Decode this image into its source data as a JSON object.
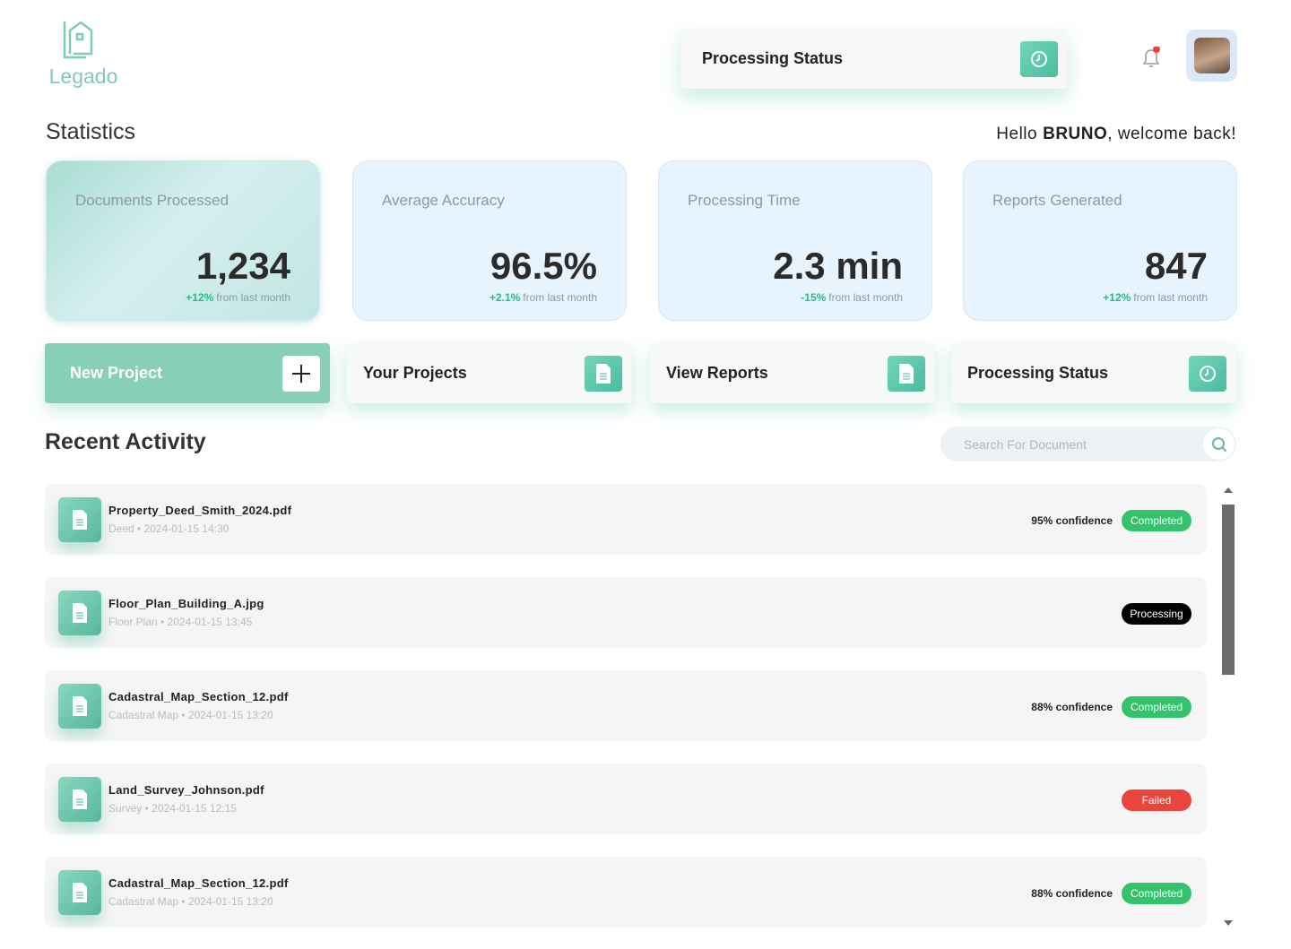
{
  "header": {
    "logo": "Legado",
    "status_button": "Processing Status"
  },
  "statistics": {
    "title": "Statistics",
    "greeting": {
      "prefix": "Hello",
      "name": "BRUNO",
      "suffix": ", welcome back!"
    },
    "cards": [
      {
        "label": "Documents Processed",
        "value": "1,234",
        "change": "+12%",
        "note": "from last month",
        "change_color": "#1fbf86"
      },
      {
        "label": "Average Accuracy",
        "value": "96.5%",
        "change": "+2.1%",
        "note": "from last month",
        "change_color": "#1fbf86"
      },
      {
        "label": "Processing Time",
        "value": "2.3 min",
        "change": "-15%",
        "note": "from last month",
        "change_color": "#1fbf86"
      },
      {
        "label": "Reports Generated",
        "value": "847",
        "change": "+12%",
        "note": "from last month",
        "change_color": "#1fbf86"
      }
    ]
  },
  "actions": [
    {
      "label": "New Project",
      "icon": "plus"
    },
    {
      "label": "Your Projects",
      "icon": "doc"
    },
    {
      "label": "View Reports",
      "icon": "doc"
    },
    {
      "label": "Processing Status",
      "icon": "clock"
    }
  ],
  "activity": {
    "title": "Recent Activity",
    "search_placeholder": "Search For Document",
    "rows": [
      {
        "file": "Property_Deed_Smith_2024.pdf",
        "meta": "Deed • 2024-01-15 14:30",
        "confidence": "95% confidence",
        "status": "Completed",
        "status_color": "#32c36c"
      },
      {
        "file": "Floor_Plan_Building_A.jpg",
        "meta": "Floor Plan • 2024-01-15 13:45",
        "confidence": null,
        "status": "Processing",
        "status_color": "#000000"
      },
      {
        "file": "Cadastral_Map_Section_12.pdf",
        "meta": "Cadastral Map • 2024-01-15 13:20",
        "confidence": "88% confidence",
        "status": "Completed",
        "status_color": "#32c36c"
      },
      {
        "file": "Land_Survey_Johnson.pdf",
        "meta": "Survey • 2024-01-15 12:15",
        "confidence": null,
        "status": "Failed",
        "status_color": "#e8453c"
      },
      {
        "file": "Cadastral_Map_Section_12.pdf",
        "meta": "Cadastral Map • 2024-01-15 13:20",
        "confidence": "88% confidence",
        "status": "Completed",
        "status_color": "#32c36c"
      }
    ]
  }
}
